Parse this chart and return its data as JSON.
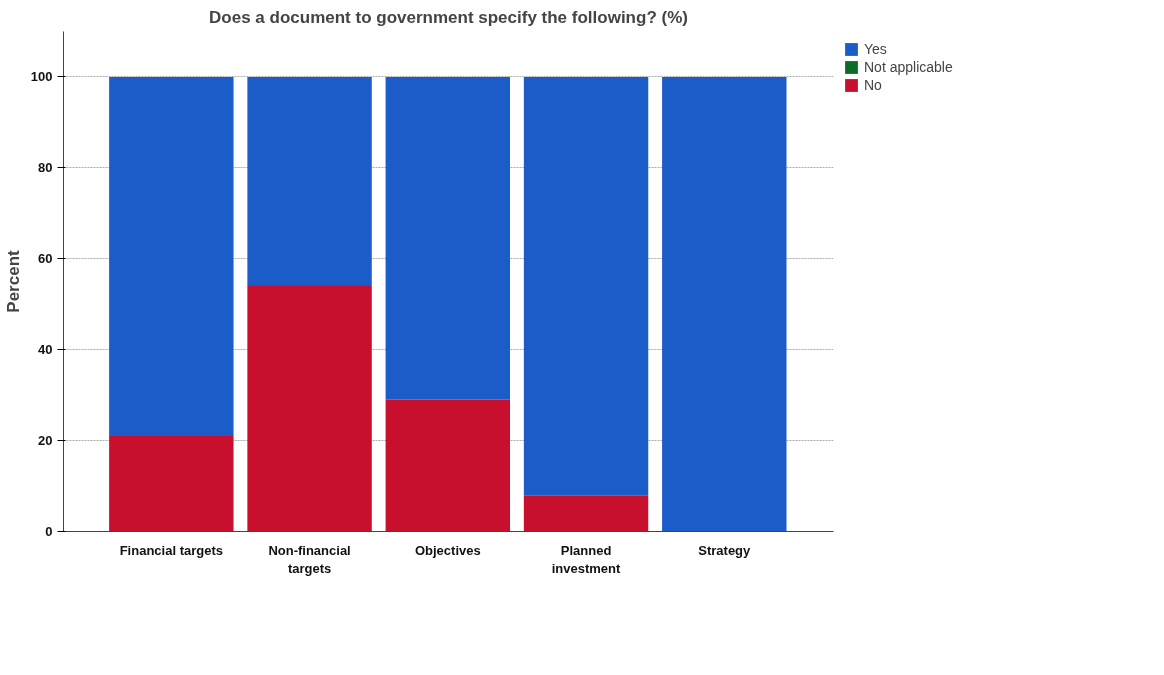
{
  "chart_data": {
    "type": "bar",
    "title": "Does a document to government specify the following? (%)",
    "ylabel": "Percent",
    "categories": [
      "Financial targets",
      "Non-financial\ntargets",
      "Objectives",
      "Planned\ninvestment",
      "Strategy"
    ],
    "stacked": true,
    "series": [
      {
        "name": "No",
        "color": "#c8102e",
        "values": [
          21,
          54,
          29,
          8,
          0
        ]
      },
      {
        "name": "Not applicable",
        "color": "#0b6b2a",
        "values": [
          0,
          0,
          0,
          0,
          0
        ]
      },
      {
        "name": "Yes",
        "color": "#1c5cc8",
        "values": [
          79,
          46,
          71,
          92,
          100
        ]
      }
    ],
    "ylim": [
      0,
      110
    ],
    "yticks": [
      0,
      20,
      40,
      60,
      80,
      100
    ],
    "grid": "y",
    "legend": "top right"
  }
}
